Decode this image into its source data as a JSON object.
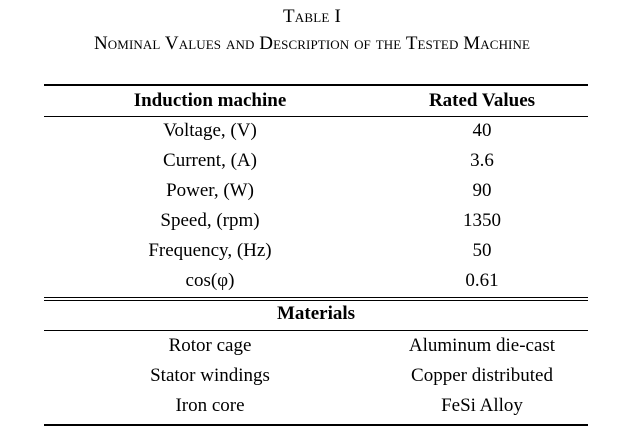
{
  "caption": {
    "label": "Table I",
    "title": "Nominal Values and Description of the Tested Machine"
  },
  "table": {
    "headers": [
      "Induction machine",
      "Rated Values"
    ],
    "rated_rows": [
      [
        "Voltage, (V)",
        "40"
      ],
      [
        "Current, (A)",
        "3.6"
      ],
      [
        "Power, (W)",
        "90"
      ],
      [
        "Speed, (rpm)",
        "1350"
      ],
      [
        "Frequency, (Hz)",
        "50"
      ],
      [
        "cos(φ)",
        "0.61"
      ]
    ],
    "materials_header": "Materials",
    "material_rows": [
      [
        "Rotor cage",
        "Aluminum die-cast"
      ],
      [
        "Stator windings",
        "Copper distributed"
      ],
      [
        "Iron core",
        "FeSi Alloy"
      ]
    ]
  }
}
